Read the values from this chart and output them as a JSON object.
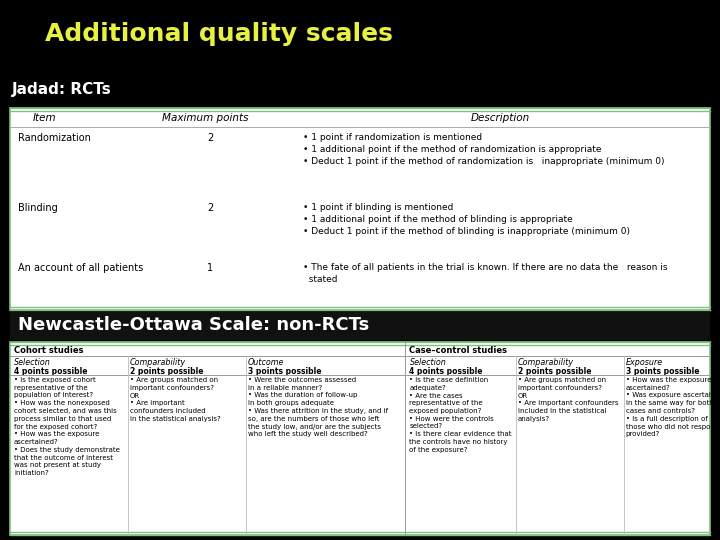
{
  "title": "Additional quality scales",
  "title_color": "#e8f040",
  "subtitle1": "Jadad: RCTs",
  "subtitle2": "Newcastle-Ottawa Scale: non-RCTs",
  "subtitle_color": "#ffffff",
  "bg_color": "#000000",
  "jadad_headers": [
    "Item",
    "Maximum points",
    "Description"
  ],
  "jadad_rows": [
    [
      "Randomization",
      "2",
      "• 1 point if randomization is mentioned\n• 1 additional point if the method of randomization is appropriate\n• Deduct 1 point if the method of randomization is   inappropriate (minimum 0)"
    ],
    [
      "Blinding",
      "2",
      "• 1 point if blinding is mentioned\n• 1 additional point if the method of blinding is appropriate\n• Deduct 1 point if the method of blinding is inappropriate (minimum 0)"
    ],
    [
      "An account of all patients",
      "1",
      "• The fate of all patients in the trial is known. If there are no data the   reason is\n  stated"
    ]
  ],
  "nos_cohort_header": "Cohort studies",
  "nos_case_header": "Case–control studies",
  "nos_cohort_cols": [
    "Selection",
    "Comparability",
    "Outcome"
  ],
  "nos_cohort_sub": [
    "4 points possible",
    "2 points possible",
    "3 points possible"
  ],
  "nos_case_cols": [
    "Selection",
    "Comparability",
    "Exposure"
  ],
  "nos_case_sub": [
    "4 points possible",
    "2 points possible",
    "3 points possible"
  ],
  "nos_cohort_content": [
    "• Is the exposed cohort\nrepresentative of the\npopulation of interest?\n• How was the nonexposed\ncohort selected, and was this\nprocess similar to that used\nfor the exposed cohort?\n• How was the exposure\nascertained?\n• Does the study demonstrate\nthat the outcome of interest\nwas not present at study\ninitiation?",
    "• Are groups matched on\nimportant confounders?\nOR\n• Are important\nconfounders included\nin the statistical analysis?",
    "• Were the outcomes assessed\nin a reliable manner?\n• Was the duration of follow-up\nin both groups adequate\n• Was there attrition in the study, and if\nso, are the numbers of those who left\nthe study low, and/or are the subjects\nwho left the study well described?"
  ],
  "nos_case_content": [
    "• Is the case definition\nadequate?\n• Are the cases\nrepresentative of the\nexposed population?\n• How were the controls\nselected?\n• Is there clear evidence that\nthe controls have no history\nof the exposure?",
    "• Are groups matched on\nimportant confounders?\nOR\n• Are important confounders\nincluded in the statistical\nanalysis?",
    "• How was the exposure\nascertained?\n• Was exposure ascertained\nin the same way for both\ncases and controls?\n• Is a full description of\nthose who did not respond\nprovided?"
  ],
  "border_color": "#7fbf7f",
  "title_fontsize": 18,
  "subtitle1_fontsize": 11,
  "subtitle2_fontsize": 13
}
